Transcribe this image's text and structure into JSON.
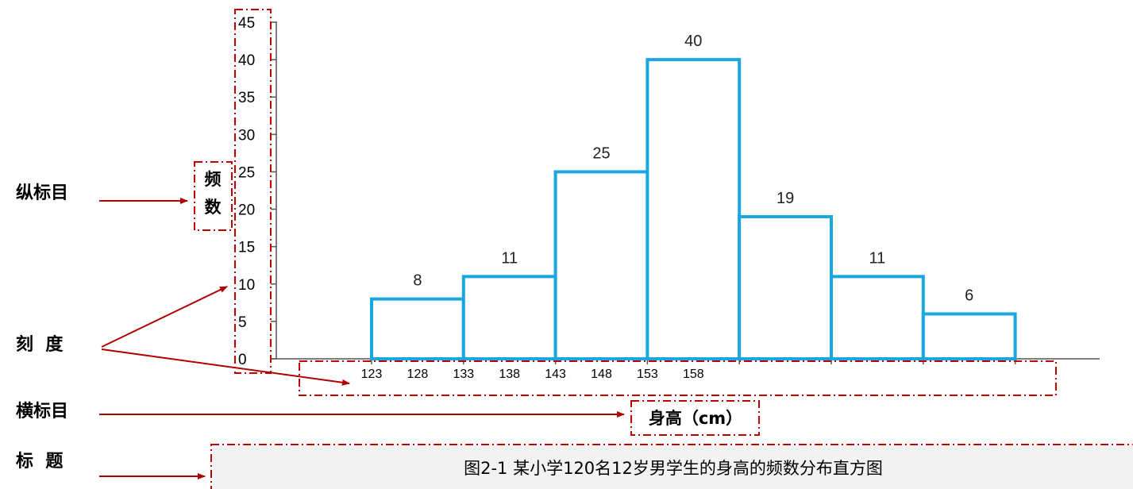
{
  "chart_data": {
    "type": "bar",
    "categories": [
      "123-133",
      "133-143",
      "143-153",
      "153-163",
      "163-173",
      "173-183",
      "183-193"
    ],
    "bin_edges": [
      123,
      133,
      143,
      153,
      163,
      173,
      183,
      193
    ],
    "values": [
      8,
      11,
      25,
      40,
      19,
      11,
      6
    ],
    "x_tick_labels": [
      "123",
      "128",
      "133",
      "138",
      "143",
      "148",
      "153",
      "158"
    ],
    "y_ticks": [
      0,
      5,
      10,
      15,
      20,
      25,
      30,
      35,
      40,
      45
    ],
    "ylim": [
      0,
      45
    ],
    "ylabel": "频数",
    "xlabel": "身高（cm）",
    "title": "图2-1  某小学120名12岁男学生的身高的频数分布直方图",
    "bar_edge_color": "#1aa7e0",
    "annotation_color": "#c00000"
  },
  "annotations": {
    "ylabel_note": "纵标目",
    "ticks_note": "刻  度",
    "xlabel_note": "横标目",
    "title_note": "标  题"
  }
}
